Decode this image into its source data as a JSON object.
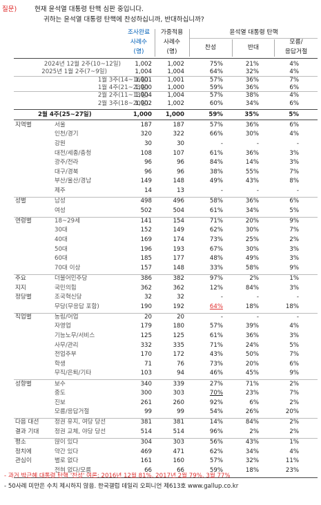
{
  "question": {
    "tag": "질문)",
    "line1": "현재 윤석열 대통령 탄핵 심판 중입니다.",
    "line2": "귀하는 윤석열 대통령 탄핵에 찬성하십니까, 반대하십니까?"
  },
  "header": {
    "col_a_top": "조사완료",
    "col_a_mid": "사례수",
    "col_a_bot": "(명)",
    "col_b_top": "가중적용",
    "col_b_mid": "사례수",
    "col_b_bot": "(명)",
    "group": "윤석열 대통령 탄핵",
    "yes": "찬성",
    "no": "반대",
    "dk1": "모름/",
    "dk2": "응답거절"
  },
  "trend": [
    {
      "label": "2024년 12월 2주(10~12일)",
      "a": "1,002",
      "b": "1,002",
      "y": "75%",
      "n": "21%",
      "d": "4%"
    },
    {
      "label": "2025년 1월 2주(7~9일)",
      "a": "1,004",
      "b": "1,004",
      "y": "64%",
      "n": "32%",
      "d": "4%"
    },
    {
      "label": "1월 3주(14~16일)",
      "a": "1,001",
      "b": "1,001",
      "y": "57%",
      "n": "36%",
      "d": "7%"
    },
    {
      "label": "1월 4주(21~23일)",
      "a": "1,000",
      "b": "1,000",
      "y": "59%",
      "n": "36%",
      "d": "6%"
    },
    {
      "label": "2월 2주(11~13일)",
      "a": "1,004",
      "b": "1,004",
      "y": "57%",
      "n": "38%",
      "d": "4%"
    },
    {
      "label": "2월 3주(18~20일)",
      "a": "1,002",
      "b": "1,002",
      "y": "60%",
      "n": "34%",
      "d": "6%"
    }
  ],
  "current": {
    "label": "2월 4주(25~27일)",
    "a": "1,000",
    "b": "1,000",
    "y": "59%",
    "n": "35%",
    "d": "5%"
  },
  "rows": [
    {
      "g": "지역별",
      "s": "서울",
      "a": "187",
      "b": "187",
      "y": "57%",
      "n": "36%",
      "d": "6%"
    },
    {
      "g": "",
      "s": "인천/경기",
      "a": "320",
      "b": "322",
      "y": "66%",
      "n": "30%",
      "d": "4%"
    },
    {
      "g": "",
      "s": "강원",
      "a": "30",
      "b": "30",
      "y": "-",
      "n": "-",
      "d": "-"
    },
    {
      "g": "",
      "s": "대전/세종/충청",
      "a": "108",
      "b": "107",
      "y": "61%",
      "n": "36%",
      "d": "3%"
    },
    {
      "g": "",
      "s": "광주/전라",
      "a": "96",
      "b": "96",
      "y": "84%",
      "n": "14%",
      "d": "3%"
    },
    {
      "g": "",
      "s": "대구/경북",
      "a": "96",
      "b": "96",
      "y": "38%",
      "n": "55%",
      "d": "7%"
    },
    {
      "g": "",
      "s": "부산/울산/경남",
      "a": "149",
      "b": "148",
      "y": "49%",
      "n": "43%",
      "d": "8%"
    },
    {
      "g": "",
      "s": "제주",
      "a": "14",
      "b": "13",
      "y": "-",
      "n": "-",
      "d": "-"
    },
    {
      "g": "성별",
      "s": "남성",
      "a": "498",
      "b": "496",
      "y": "58%",
      "n": "36%",
      "d": "6%"
    },
    {
      "g": "",
      "s": "여성",
      "a": "502",
      "b": "504",
      "y": "61%",
      "n": "34%",
      "d": "5%"
    },
    {
      "g": "연령별",
      "s": "18~29세",
      "a": "141",
      "b": "154",
      "y": "71%",
      "n": "20%",
      "d": "9%"
    },
    {
      "g": "",
      "s": "30대",
      "a": "152",
      "b": "149",
      "y": "62%",
      "n": "30%",
      "d": "7%"
    },
    {
      "g": "",
      "s": "40대",
      "a": "169",
      "b": "174",
      "y": "73%",
      "n": "25%",
      "d": "2%"
    },
    {
      "g": "",
      "s": "50대",
      "a": "196",
      "b": "193",
      "y": "67%",
      "n": "30%",
      "d": "3%"
    },
    {
      "g": "",
      "s": "60대",
      "a": "185",
      "b": "177",
      "y": "48%",
      "n": "49%",
      "d": "3%"
    },
    {
      "g": "",
      "s": "70대 이상",
      "a": "157",
      "b": "148",
      "y": "33%",
      "n": "58%",
      "d": "9%"
    },
    {
      "g": "주요",
      "s": "더불어민주당",
      "a": "386",
      "b": "382",
      "y": "97%",
      "n": "2%",
      "d": "1%"
    },
    {
      "g": "지지",
      "s": "국민의힘",
      "a": "362",
      "b": "362",
      "y": "12%",
      "n": "84%",
      "d": "3%"
    },
    {
      "g": "정당별",
      "s": "조국혁신당",
      "a": "32",
      "b": "32",
      "y": "-",
      "n": "-",
      "d": "-"
    },
    {
      "g": "",
      "s": "무당(무응답 포함)",
      "a": "190",
      "b": "192",
      "y": "64%",
      "n": "18%",
      "d": "18%",
      "yred": true
    },
    {
      "g": "직업별",
      "s": "농림/어업",
      "a": "20",
      "b": "20",
      "y": "-",
      "n": "-",
      "d": "-"
    },
    {
      "g": "",
      "s": "자영업",
      "a": "179",
      "b": "180",
      "y": "57%",
      "n": "39%",
      "d": "4%"
    },
    {
      "g": "",
      "s": "기능노무/서비스",
      "a": "125",
      "b": "125",
      "y": "61%",
      "n": "36%",
      "d": "3%"
    },
    {
      "g": "",
      "s": "사무/관리",
      "a": "332",
      "b": "335",
      "y": "71%",
      "n": "24%",
      "d": "5%"
    },
    {
      "g": "",
      "s": "전업주부",
      "a": "170",
      "b": "172",
      "y": "43%",
      "n": "50%",
      "d": "7%"
    },
    {
      "g": "",
      "s": "학생",
      "a": "71",
      "b": "76",
      "y": "73%",
      "n": "20%",
      "d": "6%"
    },
    {
      "g": "",
      "s": "무직/은퇴/기타",
      "a": "103",
      "b": "94",
      "y": "46%",
      "n": "45%",
      "d": "9%"
    },
    {
      "g": "성향별",
      "s": "보수",
      "a": "340",
      "b": "339",
      "y": "27%",
      "n": "71%",
      "d": "2%"
    },
    {
      "g": "",
      "s": "중도",
      "a": "300",
      "b": "303",
      "y": "70%",
      "n": "23%",
      "d": "7%",
      "yunder": true
    },
    {
      "g": "",
      "s": "진보",
      "a": "261",
      "b": "260",
      "y": "92%",
      "n": "6%",
      "d": "2%"
    },
    {
      "g": "",
      "s": "모름/응답거절",
      "a": "99",
      "b": "99",
      "y": "54%",
      "n": "26%",
      "d": "20%"
    },
    {
      "g": "다음 대선",
      "s": "정권 유지, 여당 당선",
      "a": "381",
      "b": "381",
      "y": "14%",
      "n": "84%",
      "d": "2%"
    },
    {
      "g": "결과 기대",
      "s": "정권 교체, 야당 당선",
      "a": "514",
      "b": "514",
      "y": "96%",
      "n": "2%",
      "d": "2%"
    },
    {
      "g": "평소",
      "s": "많이 있다",
      "a": "304",
      "b": "303",
      "y": "56%",
      "n": "43%",
      "d": "1%"
    },
    {
      "g": "정치에",
      "s": "약간 있다",
      "a": "469",
      "b": "471",
      "y": "62%",
      "n": "34%",
      "d": "4%"
    },
    {
      "g": "관심이",
      "s": "별로 없다",
      "a": "161",
      "b": "160",
      "y": "57%",
      "n": "32%",
      "d": "11%"
    },
    {
      "g": "",
      "s": "전혀 없다/모름",
      "a": "66",
      "b": "66",
      "y": "59%",
      "n": "18%",
      "d": "23%"
    }
  ],
  "footnotes": {
    "f1": "- 과거 박근혜 대통령 탄핵 '찬성' 여론: 2016년 12월 81%, 2017년 2월 79%, 3월 77%",
    "f2": "- 50사례 미만은 수치 제시하지 않음. 한국갤럽 데일리 오피니언 제613호 www.gallup.co.kr"
  },
  "colors": {
    "accent": "#0060b8",
    "red": "#e03030"
  }
}
